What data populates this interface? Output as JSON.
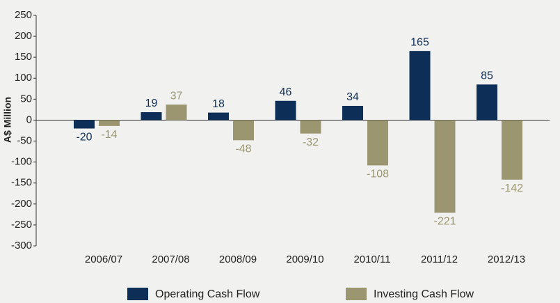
{
  "chart_data": {
    "type": "bar",
    "y_label": "A$ Million",
    "categories": [
      "2006/07",
      "2007/08",
      "2008/09",
      "2009/10",
      "2010/11",
      "2011/12",
      "2012/13"
    ],
    "series": [
      {
        "name": "Operating Cash Flow",
        "color": "#0d2f57",
        "values": [
          -20,
          19,
          18,
          46,
          34,
          165,
          85
        ]
      },
      {
        "name": "Investing Cash Flow",
        "color": "#9c9670",
        "values": [
          -14,
          37,
          -48,
          -32,
          -108,
          -221,
          -142
        ]
      }
    ],
    "ylim": [
      -300,
      250
    ],
    "yticks": [
      -300,
      -250,
      -200,
      -150,
      -100,
      -50,
      0,
      50,
      100,
      150,
      200,
      250
    ],
    "grid": false
  }
}
